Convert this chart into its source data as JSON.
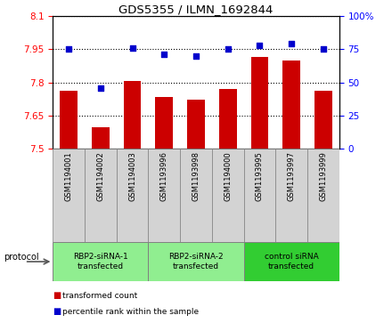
{
  "title": "GDS5355 / ILMN_1692844",
  "samples": [
    "GSM1194001",
    "GSM1194002",
    "GSM1194003",
    "GSM1193996",
    "GSM1193998",
    "GSM1194000",
    "GSM1193995",
    "GSM1193997",
    "GSM1193999"
  ],
  "red_values": [
    7.762,
    7.597,
    7.805,
    7.735,
    7.72,
    7.772,
    7.915,
    7.9,
    7.76
  ],
  "blue_values": [
    75,
    46,
    76,
    71,
    70,
    75,
    78,
    79,
    75
  ],
  "ylim_left": [
    7.5,
    8.1
  ],
  "ylim_right": [
    0,
    100
  ],
  "yticks_left": [
    7.5,
    7.65,
    7.8,
    7.95,
    8.1
  ],
  "yticks_right": [
    0,
    25,
    50,
    75,
    100
  ],
  "ytick_labels_right": [
    "0",
    "25",
    "50",
    "75",
    "100%"
  ],
  "bar_color": "#cc0000",
  "dot_color": "#0000cc",
  "bar_bottom": 7.5,
  "protocols": [
    {
      "label": "RBP2-siRNA-1\ntransfected",
      "start": 0,
      "end": 3,
      "color": "#90ee90"
    },
    {
      "label": "RBP2-siRNA-2\ntransfected",
      "start": 3,
      "end": 6,
      "color": "#90ee90"
    },
    {
      "label": "control siRNA\ntransfected",
      "start": 6,
      "end": 9,
      "color": "#32cd32"
    }
  ],
  "protocol_label": "protocol",
  "legend_items": [
    {
      "label": "transformed count",
      "color": "#cc0000"
    },
    {
      "label": "percentile rank within the sample",
      "color": "#0000cc"
    }
  ],
  "grid_color": "black",
  "grid_linestyle": "dotted",
  "grid_linewidth": 0.8
}
